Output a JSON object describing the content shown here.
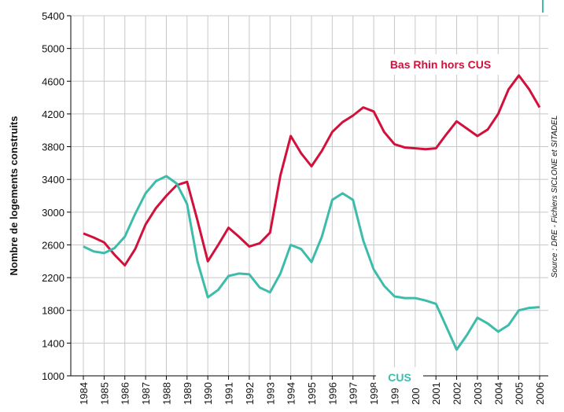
{
  "chart_data": {
    "type": "line",
    "y_label": "Nombre de logements construits",
    "source": "Source : DRE - Fichiers SICLONE et SITADEL",
    "categories": [
      "1984",
      null,
      "1985",
      null,
      "1986",
      null,
      "1987",
      null,
      "1988",
      null,
      "1989",
      null,
      "1990",
      null,
      "1991",
      null,
      "1992",
      null,
      "1993",
      null,
      "1994",
      null,
      "1995",
      null,
      "1996",
      null,
      "1997",
      null,
      "1998",
      null,
      "1999",
      null,
      "2000",
      null,
      "2001",
      null,
      "2002",
      null,
      "2003",
      null,
      "2004",
      null,
      "2005",
      null,
      "2006"
    ],
    "series": [
      {
        "name": "Bas Rhin hors CUS",
        "color": "#d2103c",
        "values": [
          2740,
          2690,
          2630,
          2480,
          2350,
          2550,
          2850,
          3050,
          3200,
          3330,
          3370,
          2900,
          2400,
          2600,
          2810,
          2700,
          2580,
          2620,
          2750,
          3450,
          3930,
          3720,
          3560,
          3750,
          3980,
          4100,
          4180,
          4280,
          4230,
          3980,
          3830,
          3790,
          3780,
          3770,
          3780,
          3950,
          4110,
          4020,
          3930,
          4010,
          4200,
          4500,
          4670,
          4500,
          4280
        ]
      },
      {
        "name": "CUS",
        "color": "#3dbcab",
        "values": [
          2580,
          2520,
          2500,
          2560,
          2700,
          2980,
          3230,
          3380,
          3440,
          3350,
          3100,
          2400,
          1960,
          2050,
          2220,
          2250,
          2240,
          2080,
          2020,
          2250,
          2600,
          2550,
          2390,
          2700,
          3150,
          3230,
          3150,
          2650,
          2300,
          2100,
          1970,
          1950,
          1950,
          1920,
          1880,
          1600,
          1320,
          1500,
          1710,
          1640,
          1540,
          1620,
          1800,
          1830,
          1840
        ]
      }
    ],
    "ylim": [
      1000,
      5400
    ],
    "yticks": [
      1000,
      1400,
      1800,
      2200,
      2600,
      3000,
      3400,
      3800,
      4200,
      4600,
      5000,
      5400
    ],
    "grid": true
  }
}
